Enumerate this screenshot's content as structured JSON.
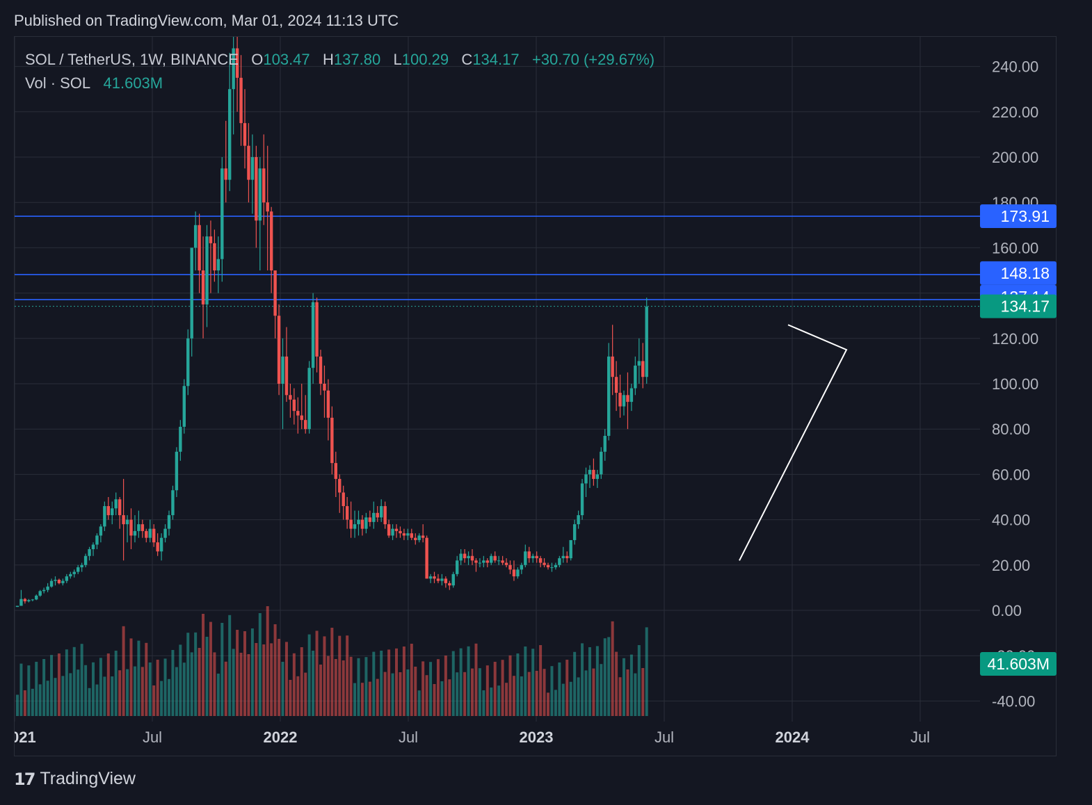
{
  "header": {
    "published": "Published on TradingView.com, Mar 01, 2024 11:13 UTC"
  },
  "legend": {
    "symbol": "SOL / TetherUS, 1W, BINANCE",
    "o_label": "O",
    "o_value": "103.47",
    "h_label": "H",
    "h_value": "137.80",
    "l_label": "L",
    "l_value": "100.29",
    "c_label": "C",
    "c_value": "134.17",
    "change": "+30.70 (+29.67%)",
    "vol_label": "Vol · SOL",
    "vol_value": "41.603M"
  },
  "footer": {
    "brand": "TradingView",
    "logo_icon": "tradingview-logo-icon"
  },
  "colors": {
    "up": "#26a69a",
    "down": "#ef5350",
    "hline": "#2962ff",
    "background": "#141722",
    "grid": "#2a2e39",
    "axis_text": "#b2b5be"
  },
  "chart_data": {
    "type": "candlestick",
    "symbol": "SOL / TetherUS",
    "interval": "1W",
    "exchange": "BINANCE",
    "y_ticks": [
      "240.00",
      "220.00",
      "200.00",
      "180.00",
      "160.00",
      "120.00",
      "100.00",
      "80.00",
      "60.00",
      "40.00",
      "20.00",
      "0.00",
      "-20.00",
      "-40.00"
    ],
    "x_ticks": [
      "2021",
      "Jul",
      "2022",
      "Jul",
      "2023",
      "Jul",
      "2024",
      "Jul"
    ],
    "horizontal_lines": [
      173.91,
      148.18,
      137.14
    ],
    "price_labels": [
      {
        "text": "173.91",
        "value": 173.91,
        "color": "#2962ff"
      },
      {
        "text": "148.18",
        "value": 148.18,
        "color": "#2962ff"
      },
      {
        "text": "137.14",
        "value": 137.14,
        "color": "#2962ff"
      },
      {
        "text": "134.17",
        "value": 134.17,
        "color": "#089981"
      },
      {
        "text": "41.603M",
        "value": "volume",
        "color": "#089981"
      }
    ],
    "last_price": 134.17,
    "triangle_pattern": [
      [
        "2023-12-25",
        126
      ],
      [
        "2024-03-10",
        115
      ],
      [
        "2023-10-16",
        22
      ]
    ],
    "ohlc_weekly_2021_2024": [
      [
        1.5,
        2,
        1.5,
        2
      ],
      [
        2,
        9,
        2,
        5
      ],
      [
        5,
        5.5,
        3,
        4
      ],
      [
        4,
        5,
        3.5,
        4.5
      ],
      [
        4.5,
        5,
        4,
        4.8
      ],
      [
        4.8,
        7,
        4.5,
        6.5
      ],
      [
        6.5,
        9,
        6,
        8.5
      ],
      [
        8.5,
        10,
        7.5,
        9
      ],
      [
        9,
        12,
        8,
        10.5
      ],
      [
        10.5,
        14,
        10,
        13
      ],
      [
        13,
        15,
        11,
        13.5
      ],
      [
        13.5,
        14,
        11.5,
        12
      ],
      [
        12,
        14,
        11,
        13
      ],
      [
        13,
        16,
        12,
        15
      ],
      [
        15,
        17,
        14,
        16
      ],
      [
        16,
        18,
        14.5,
        17
      ],
      [
        17,
        20,
        16,
        19
      ],
      [
        19,
        21,
        17,
        20
      ],
      [
        20,
        25,
        19,
        24
      ],
      [
        24,
        28,
        22,
        27
      ],
      [
        27,
        30,
        24,
        29
      ],
      [
        29,
        34,
        27,
        33
      ],
      [
        33,
        38,
        30,
        37
      ],
      [
        37,
        48,
        35,
        46
      ],
      [
        46,
        50,
        40,
        42
      ],
      [
        42,
        48,
        38,
        45
      ],
      [
        45,
        52,
        42,
        49
      ],
      [
        49,
        50,
        36,
        42
      ],
      [
        42,
        58,
        22,
        38
      ],
      [
        38,
        42,
        30,
        40
      ],
      [
        40,
        45,
        27,
        33
      ],
      [
        33,
        42,
        30,
        35
      ],
      [
        35,
        44,
        32,
        38
      ],
      [
        38,
        40,
        32,
        35
      ],
      [
        35,
        36,
        30,
        32
      ],
      [
        32,
        40,
        30,
        36
      ],
      [
        36,
        38,
        28,
        30
      ],
      [
        30,
        34,
        24,
        26
      ],
      [
        26,
        34,
        22,
        32
      ],
      [
        32,
        38,
        30,
        36
      ],
      [
        36,
        44,
        33,
        42
      ],
      [
        42,
        55,
        40,
        53
      ],
      [
        53,
        72,
        50,
        70
      ],
      [
        70,
        84,
        66,
        81
      ],
      [
        81,
        102,
        78,
        99
      ],
      [
        99,
        124,
        95,
        120
      ],
      [
        120,
        145,
        112,
        160
      ],
      [
        160,
        176,
        150,
        170
      ],
      [
        170,
        175,
        140,
        150
      ],
      [
        150,
        165,
        120,
        135
      ],
      [
        135,
        170,
        125,
        165
      ],
      [
        165,
        172,
        140,
        162
      ],
      [
        162,
        168,
        145,
        150
      ],
      [
        150,
        165,
        140,
        155
      ],
      [
        155,
        200,
        145,
        195
      ],
      [
        195,
        216,
        180,
        190
      ],
      [
        190,
        246,
        185,
        230
      ],
      [
        230,
        258,
        210,
        248
      ],
      [
        248,
        260,
        220,
        235
      ],
      [
        235,
        245,
        205,
        215
      ],
      [
        215,
        230,
        195,
        205
      ],
      [
        205,
        215,
        180,
        190
      ],
      [
        190,
        210,
        175,
        200
      ],
      [
        200,
        205,
        160,
        172
      ],
      [
        172,
        200,
        150,
        195
      ],
      [
        195,
        210,
        170,
        180
      ],
      [
        180,
        205,
        150,
        176
      ],
      [
        176,
        178,
        140,
        150
      ],
      [
        150,
        150,
        120,
        130
      ],
      [
        130,
        135,
        95,
        100
      ],
      [
        100,
        120,
        80,
        112
      ],
      [
        112,
        125,
        92,
        95
      ],
      [
        95,
        100,
        85,
        93
      ],
      [
        93,
        98,
        82,
        88
      ],
      [
        88,
        94,
        78,
        86
      ],
      [
        86,
        100,
        80,
        84
      ],
      [
        84,
        95,
        78,
        80
      ],
      [
        80,
        110,
        78,
        107
      ],
      [
        107,
        140,
        100,
        136
      ],
      [
        136,
        138,
        105,
        112
      ],
      [
        112,
        115,
        95,
        100
      ],
      [
        100,
        108,
        85,
        97
      ],
      [
        97,
        102,
        75,
        85
      ],
      [
        85,
        90,
        60,
        65
      ],
      [
        65,
        70,
        50,
        58
      ],
      [
        58,
        60,
        43,
        52
      ],
      [
        52,
        55,
        40,
        46
      ],
      [
        46,
        50,
        36,
        40
      ],
      [
        40,
        48,
        32,
        36
      ],
      [
        36,
        44,
        32,
        38
      ],
      [
        38,
        44,
        33,
        40
      ],
      [
        40,
        42,
        33,
        36
      ],
      [
        36,
        43,
        34,
        41
      ],
      [
        41,
        44,
        37,
        39
      ],
      [
        39,
        48,
        36,
        43
      ],
      [
        43,
        46,
        39,
        41
      ],
      [
        41,
        49,
        39,
        46
      ],
      [
        46,
        48,
        36,
        38
      ],
      [
        38,
        40,
        32,
        33
      ],
      [
        33,
        38,
        31,
        36
      ],
      [
        36,
        38,
        32,
        35
      ],
      [
        35,
        37,
        32,
        34
      ],
      [
        34,
        36,
        31,
        33
      ],
      [
        33,
        36,
        31,
        34
      ],
      [
        34,
        36,
        31,
        32
      ],
      [
        32,
        34,
        29,
        31
      ],
      [
        31,
        34,
        30,
        33
      ],
      [
        33,
        38,
        30,
        32
      ],
      [
        32,
        33,
        14,
        14
      ],
      [
        14,
        16,
        12,
        15
      ],
      [
        15,
        17,
        12,
        14
      ],
      [
        14,
        16,
        12,
        13
      ],
      [
        13,
        16,
        11,
        14
      ],
      [
        14,
        15,
        10,
        12
      ],
      [
        12,
        13,
        9,
        11
      ],
      [
        11,
        17,
        10,
        16
      ],
      [
        16,
        24,
        15,
        22
      ],
      [
        22,
        27,
        20,
        25
      ],
      [
        25,
        27,
        21,
        23
      ],
      [
        23,
        26,
        20,
        24
      ],
      [
        24,
        27,
        20,
        22
      ],
      [
        22,
        23,
        17,
        21
      ],
      [
        21,
        23,
        19,
        21
      ],
      [
        21,
        24,
        19,
        22
      ],
      [
        22,
        23,
        19,
        21
      ],
      [
        21,
        25,
        20,
        24
      ],
      [
        24,
        26,
        21,
        22
      ],
      [
        22,
        24,
        20,
        22
      ],
      [
        22,
        24,
        20,
        21
      ],
      [
        21,
        23,
        19,
        20
      ],
      [
        20,
        22,
        16,
        18
      ],
      [
        18,
        22,
        13,
        15
      ],
      [
        15,
        19,
        14,
        18
      ],
      [
        18,
        21,
        16,
        20
      ],
      [
        20,
        29,
        19,
        26
      ],
      [
        26,
        28,
        21,
        23
      ],
      [
        23,
        25,
        21,
        24
      ],
      [
        24,
        26,
        21,
        23
      ],
      [
        23,
        24,
        19,
        21
      ],
      [
        21,
        23,
        19,
        20
      ],
      [
        20,
        21,
        18,
        19
      ],
      [
        19,
        21,
        17,
        19
      ],
      [
        19,
        21,
        18,
        20
      ],
      [
        20,
        24,
        19,
        23
      ],
      [
        23,
        28,
        21,
        24
      ],
      [
        24,
        26,
        21,
        23
      ],
      [
        23,
        28,
        22,
        31
      ],
      [
        31,
        40,
        29,
        38
      ],
      [
        38,
        44,
        36,
        42
      ],
      [
        42,
        58,
        40,
        56
      ],
      [
        56,
        63,
        50,
        60
      ],
      [
        60,
        64,
        54,
        62
      ],
      [
        62,
        67,
        55,
        58
      ],
      [
        58,
        62,
        54,
        60
      ],
      [
        60,
        72,
        58,
        70
      ],
      [
        70,
        80,
        66,
        77
      ],
      [
        77,
        118,
        75,
        112
      ],
      [
        112,
        126,
        95,
        103
      ],
      [
        103,
        110,
        88,
        96
      ],
      [
        96,
        104,
        85,
        90
      ],
      [
        90,
        97,
        86,
        95
      ],
      [
        95,
        105,
        80,
        92
      ],
      [
        92,
        100,
        88,
        98
      ],
      [
        98,
        112,
        95,
        108
      ],
      [
        108,
        120,
        100,
        110
      ],
      [
        110,
        118,
        98,
        103
      ],
      [
        103,
        138,
        100,
        134
      ]
    ]
  }
}
